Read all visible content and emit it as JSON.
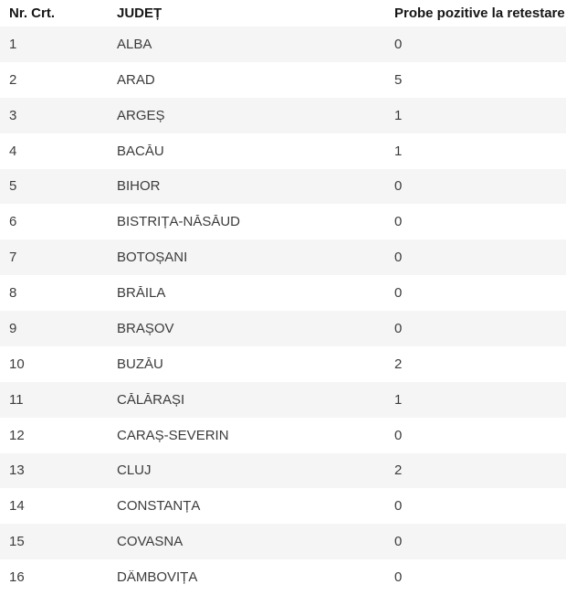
{
  "colors": {
    "stripe": "#f5f5f5",
    "bg": "#ffffff",
    "header-text": "#161616",
    "cell-text": "#3c3c3c"
  },
  "table": {
    "headers": {
      "nr": "Nr. Crt.",
      "judet": "JUDEȚ",
      "probe": "Probe pozitive la retestare"
    },
    "rows": [
      {
        "nr": "1",
        "judet": "ALBA",
        "probe": "0"
      },
      {
        "nr": "2",
        "judet": "ARAD",
        "probe": "5"
      },
      {
        "nr": "3",
        "judet": "ARGEȘ",
        "probe": "1"
      },
      {
        "nr": "4",
        "judet": "BACĂU",
        "probe": "1"
      },
      {
        "nr": "5",
        "judet": "BIHOR",
        "probe": "0"
      },
      {
        "nr": "6",
        "judet": "BISTRIȚA-NĂSĂUD",
        "probe": "0"
      },
      {
        "nr": "7",
        "judet": "BOTOȘANI",
        "probe": "0"
      },
      {
        "nr": "8",
        "judet": "BRĂILA",
        "probe": "0"
      },
      {
        "nr": "9",
        "judet": "BRAȘOV",
        "probe": "0"
      },
      {
        "nr": "10",
        "judet": "BUZĂU",
        "probe": "2"
      },
      {
        "nr": "11",
        "judet": "CĂLĂRAȘI",
        "probe": "1"
      },
      {
        "nr": "12",
        "judet": "CARAȘ-SEVERIN",
        "probe": "0"
      },
      {
        "nr": "13",
        "judet": "CLUJ",
        "probe": "2"
      },
      {
        "nr": "14",
        "judet": "CONSTANȚA",
        "probe": "0"
      },
      {
        "nr": "15",
        "judet": "COVASNA",
        "probe": "0"
      },
      {
        "nr": "16",
        "judet": "DÂMBOVIȚA",
        "probe": "0"
      }
    ]
  },
  "chart_data": {
    "type": "table",
    "columns": [
      "Nr. Crt.",
      "JUDEȚ",
      "Probe pozitive la retestare"
    ],
    "rows": [
      [
        1,
        "ALBA",
        0
      ],
      [
        2,
        "ARAD",
        5
      ],
      [
        3,
        "ARGEȘ",
        1
      ],
      [
        4,
        "BACĂU",
        1
      ],
      [
        5,
        "BIHOR",
        0
      ],
      [
        6,
        "BISTRIȚA-NĂSĂUD",
        0
      ],
      [
        7,
        "BOTOȘANI",
        0
      ],
      [
        8,
        "BRĂILA",
        0
      ],
      [
        9,
        "BRAȘOV",
        0
      ],
      [
        10,
        "BUZĂU",
        2
      ],
      [
        11,
        "CĂLĂRAȘI",
        1
      ],
      [
        12,
        "CARAȘ-SEVERIN",
        0
      ],
      [
        13,
        "CLUJ",
        2
      ],
      [
        14,
        "CONSTANȚA",
        0
      ],
      [
        15,
        "COVASNA",
        0
      ],
      [
        16,
        "DÂMBOVIȚA",
        0
      ]
    ],
    "layout_hints": {
      "striped_rows": "odd rows #f5f5f5, even rows white",
      "column_alignment": [
        "left",
        "left",
        "left"
      ]
    }
  }
}
